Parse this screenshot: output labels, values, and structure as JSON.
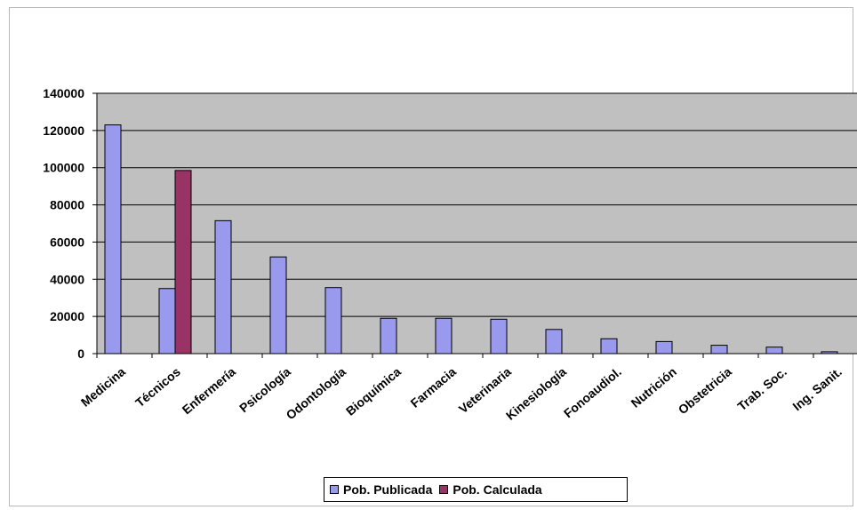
{
  "chart_data": {
    "type": "bar",
    "categories": [
      "Medicina",
      "Técnicos",
      "Enfermería",
      "Psicología",
      "Odontología",
      "Bioquímica",
      "Farmacia",
      "Veterinaria",
      "Kinesiología",
      "Fonoaudiol.",
      "Nutrición",
      "Obstetricia",
      "Trab. Soc.",
      "Ing. Sanit."
    ],
    "series": [
      {
        "name": "Pob. Publicada",
        "color": "#9999ee",
        "values": [
          123000,
          35000,
          71500,
          52000,
          35500,
          19000,
          19000,
          18500,
          13000,
          8000,
          6500,
          4500,
          3500,
          1000
        ]
      },
      {
        "name": "Pob. Calculada",
        "color": "#993366",
        "values": [
          null,
          98500,
          null,
          null,
          null,
          null,
          null,
          null,
          null,
          null,
          null,
          null,
          null,
          null
        ]
      }
    ],
    "ylim": [
      0,
      140000
    ],
    "yticks": [
      "0",
      "20000",
      "40000",
      "60000",
      "80000",
      "100000",
      "120000",
      "140000"
    ],
    "grid": true,
    "plot_background": "#c0c0c0",
    "legend_position": "bottom"
  },
  "legend": {
    "items": [
      {
        "label": "Pob. Publicada",
        "color": "#9999ee"
      },
      {
        "label": "Pob. Calculada",
        "color": "#993366"
      }
    ]
  }
}
